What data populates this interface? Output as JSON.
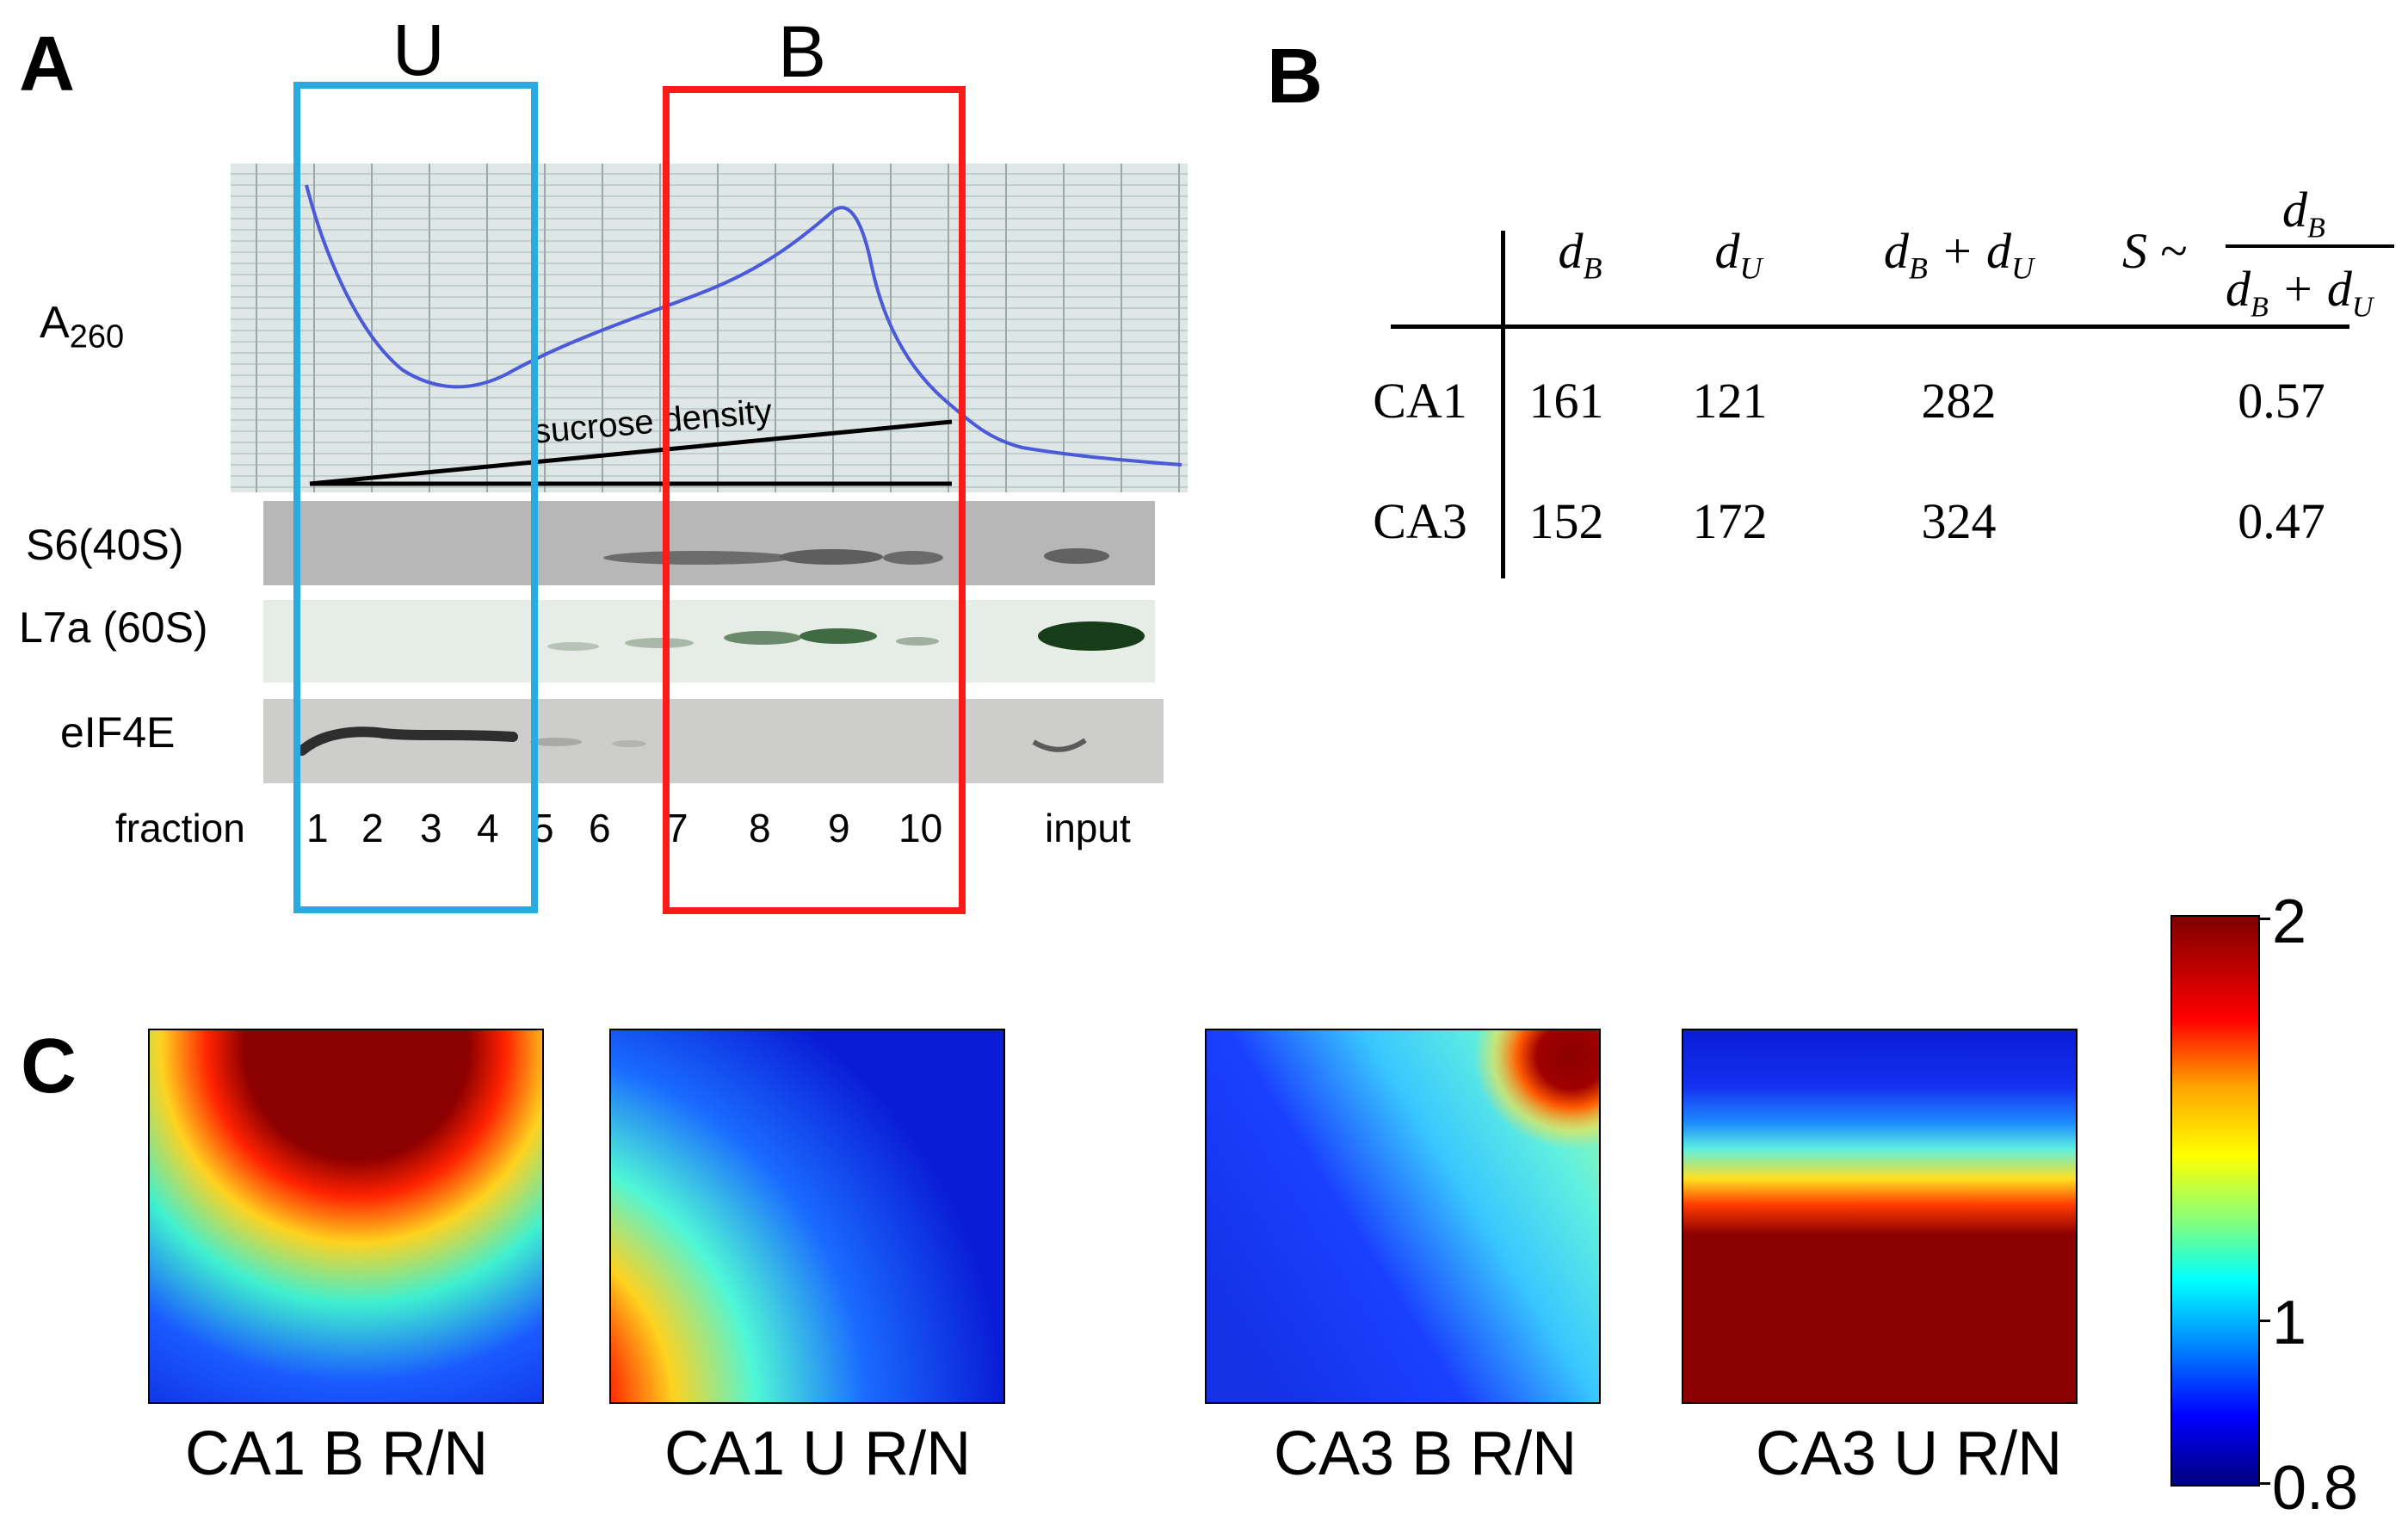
{
  "panel_a": {
    "letter": "A",
    "box_u_label": "U",
    "box_b_label": "B",
    "a260_label": "A",
    "a260_sub": "260",
    "gradient_label": "sucrose density",
    "blot_labels": [
      "S6(40S)",
      "L7a (60S)",
      "eIF4E"
    ],
    "fraction_label": "fraction",
    "fractions": [
      "1",
      "2",
      "3",
      "4",
      "5",
      "6",
      "7",
      "8",
      "9",
      "10"
    ],
    "input_label": "input",
    "colors": {
      "u_box": "#29abe2",
      "b_box": "#ff1a1a",
      "trace": "#4a5ad8"
    }
  },
  "panel_b": {
    "letter": "B",
    "header": {
      "db": "d",
      "db_sub": "B",
      "du": "d",
      "du_sub": "U",
      "sum_d": "d",
      "sum_b": "B",
      "sum_plus": "+ d",
      "sum_u": "U",
      "s_prefix": "S ~",
      "frac_num": "d",
      "frac_num_sub": "B",
      "frac_den": "d",
      "frac_den_sub1": "B",
      "frac_den_plus": "+ d",
      "frac_den_sub2": "U"
    },
    "rows": [
      {
        "label": "CA1",
        "db": "161",
        "du": "121",
        "sum": "282",
        "s": "0.57"
      },
      {
        "label": "CA3",
        "db": "152",
        "du": "172",
        "sum": "324",
        "s": "0.47"
      }
    ]
  },
  "panel_c": {
    "letter": "C",
    "heatmap_labels": [
      "CA1 B R/N",
      "CA1 U R/N",
      "CA3 B R/N",
      "CA3 U R/N"
    ],
    "colorbar_ticks": [
      "2",
      "1",
      "0.8"
    ]
  }
}
